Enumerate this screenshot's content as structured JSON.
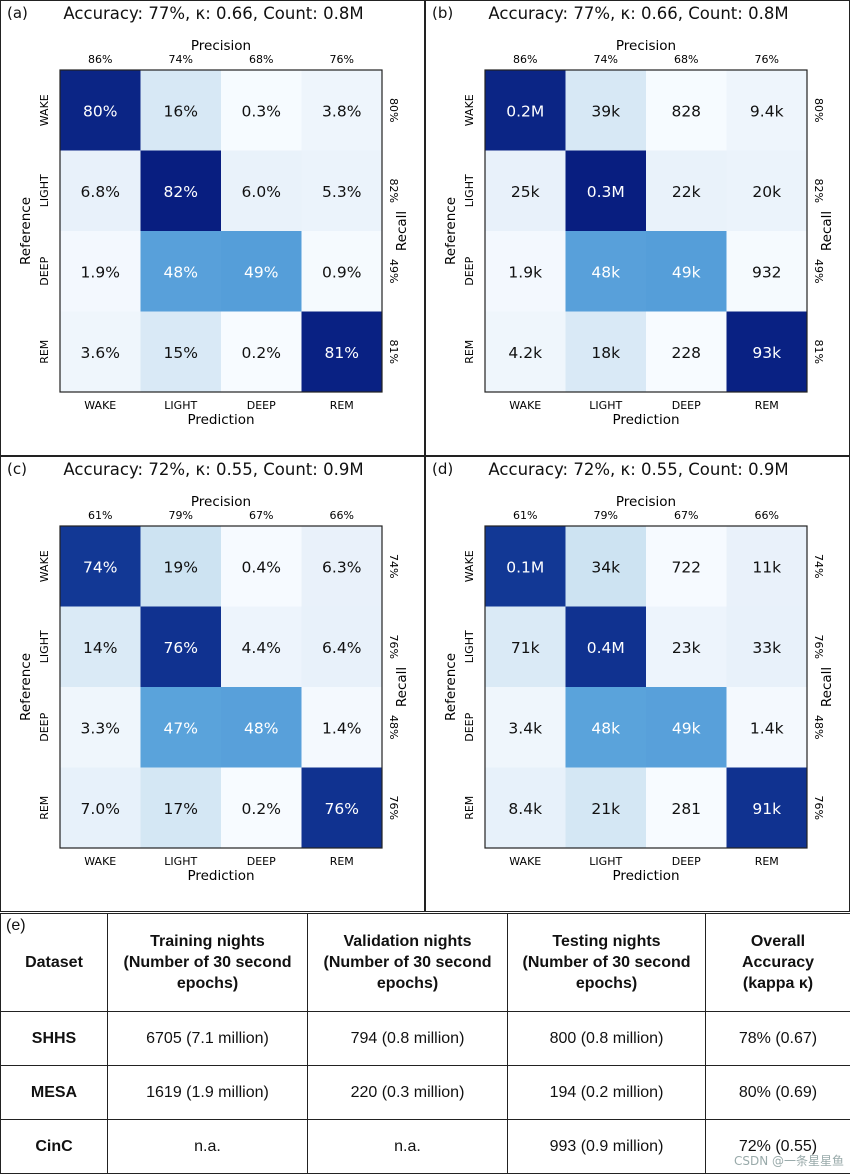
{
  "chart_data": [
    {
      "type": "heatmap",
      "panel_label": "(a)",
      "title": "Accuracy: 77%, κ: 0.66, Count: 0.8M",
      "top_label": "Precision",
      "precision": [
        "86%",
        "74%",
        "68%",
        "76%"
      ],
      "right_label": "Recall",
      "recall": [
        "80%",
        "82%",
        "49%",
        "81%"
      ],
      "xlabel": "Prediction",
      "ylabel": "Reference",
      "x_categories": [
        "WAKE",
        "LIGHT",
        "DEEP",
        "REM"
      ],
      "y_categories": [
        "WAKE",
        "LIGHT",
        "DEEP",
        "REM"
      ],
      "cells": [
        [
          "80%",
          "16%",
          "0.3%",
          "3.8%"
        ],
        [
          "6.8%",
          "82%",
          "6.0%",
          "5.3%"
        ],
        [
          "1.9%",
          "48%",
          "49%",
          "0.9%"
        ],
        [
          "3.6%",
          "15%",
          "0.2%",
          "81%"
        ]
      ],
      "intensity": [
        [
          80,
          16,
          0.3,
          3.8
        ],
        [
          6.8,
          82,
          6.0,
          5.3
        ],
        [
          1.9,
          48,
          49,
          0.9
        ],
        [
          3.6,
          15,
          0.2,
          81
        ]
      ]
    },
    {
      "type": "heatmap",
      "panel_label": "(b)",
      "title": "Accuracy: 77%, κ: 0.66, Count: 0.8M",
      "top_label": "Precision",
      "precision": [
        "86%",
        "74%",
        "68%",
        "76%"
      ],
      "right_label": "Recall",
      "recall": [
        "80%",
        "82%",
        "49%",
        "81%"
      ],
      "xlabel": "Prediction",
      "ylabel": "Reference",
      "x_categories": [
        "WAKE",
        "LIGHT",
        "DEEP",
        "REM"
      ],
      "y_categories": [
        "WAKE",
        "LIGHT",
        "DEEP",
        "REM"
      ],
      "cells": [
        [
          "0.2M",
          "39k",
          "828",
          "9.4k"
        ],
        [
          "25k",
          "0.3M",
          "22k",
          "20k"
        ],
        [
          "1.9k",
          "48k",
          "49k",
          "932"
        ],
        [
          "4.2k",
          "18k",
          "228",
          "93k"
        ]
      ],
      "intensity": [
        [
          80,
          16,
          0.3,
          3.8
        ],
        [
          6.8,
          82,
          6.0,
          5.3
        ],
        [
          1.9,
          48,
          49,
          0.9
        ],
        [
          3.6,
          15,
          0.2,
          81
        ]
      ]
    },
    {
      "type": "heatmap",
      "panel_label": "(c)",
      "title": "Accuracy: 72%, κ: 0.55, Count: 0.9M",
      "top_label": "Precision",
      "precision": [
        "61%",
        "79%",
        "67%",
        "66%"
      ],
      "right_label": "Recall",
      "recall": [
        "74%",
        "76%",
        "48%",
        "76%"
      ],
      "xlabel": "Prediction",
      "ylabel": "Reference",
      "x_categories": [
        "WAKE",
        "LIGHT",
        "DEEP",
        "REM"
      ],
      "y_categories": [
        "WAKE",
        "LIGHT",
        "DEEP",
        "REM"
      ],
      "cells": [
        [
          "74%",
          "19%",
          "0.4%",
          "6.3%"
        ],
        [
          "14%",
          "76%",
          "4.4%",
          "6.4%"
        ],
        [
          "3.3%",
          "47%",
          "48%",
          "1.4%"
        ],
        [
          "7.0%",
          "17%",
          "0.2%",
          "76%"
        ]
      ],
      "intensity": [
        [
          74,
          19,
          0.4,
          6.3
        ],
        [
          14,
          76,
          4.4,
          6.4
        ],
        [
          3.3,
          47,
          48,
          1.4
        ],
        [
          7.0,
          17,
          0.2,
          76
        ]
      ]
    },
    {
      "type": "heatmap",
      "panel_label": "(d)",
      "title": "Accuracy: 72%, κ: 0.55, Count: 0.9M",
      "top_label": "Precision",
      "precision": [
        "61%",
        "79%",
        "67%",
        "66%"
      ],
      "right_label": "Recall",
      "recall": [
        "74%",
        "76%",
        "48%",
        "76%"
      ],
      "xlabel": "Prediction",
      "ylabel": "Reference",
      "x_categories": [
        "WAKE",
        "LIGHT",
        "DEEP",
        "REM"
      ],
      "y_categories": [
        "WAKE",
        "LIGHT",
        "DEEP",
        "REM"
      ],
      "cells": [
        [
          "0.1M",
          "34k",
          "722",
          "11k"
        ],
        [
          "71k",
          "0.4M",
          "23k",
          "33k"
        ],
        [
          "3.4k",
          "48k",
          "49k",
          "1.4k"
        ],
        [
          "8.4k",
          "21k",
          "281",
          "91k"
        ]
      ],
      "intensity": [
        [
          74,
          19,
          0.4,
          6.3
        ],
        [
          14,
          76,
          4.4,
          6.4
        ],
        [
          3.3,
          47,
          48,
          1.4
        ],
        [
          7.0,
          17,
          0.2,
          76
        ]
      ]
    }
  ],
  "table": {
    "panel_label": "(e)",
    "headers": [
      "Dataset",
      "Training nights (Number of 30 second epochs)",
      "Validation nights (Number of 30 second epochs)",
      "Testing nights (Number of 30 second epochs)",
      "Overall Accuracy (kappa κ)"
    ],
    "rows": [
      [
        "SHHS",
        "6705 (7.1 million)",
        "794 (0.8 million)",
        "800 (0.8 million)",
        "78% (0.67)"
      ],
      [
        "MESA",
        "1619 (1.9 million)",
        "220 (0.3 million)",
        "194 (0.2 million)",
        "80% (0.69)"
      ],
      [
        "CinC",
        "n.a.",
        "n.a.",
        "993 (0.9 million)",
        "72% (0.55)"
      ]
    ]
  },
  "watermark": "CSDN @一条星星鱼"
}
